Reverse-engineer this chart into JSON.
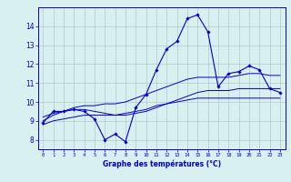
{
  "hours": [
    0,
    1,
    2,
    3,
    4,
    5,
    6,
    7,
    8,
    9,
    10,
    11,
    12,
    13,
    14,
    15,
    16,
    17,
    18,
    19,
    20,
    21,
    22,
    23
  ],
  "temp_main": [
    8.9,
    9.5,
    9.5,
    9.6,
    9.5,
    9.1,
    8.0,
    8.3,
    7.9,
    9.7,
    10.4,
    11.7,
    12.8,
    13.2,
    14.4,
    14.6,
    13.7,
    10.8,
    11.5,
    11.6,
    11.9,
    11.7,
    10.7,
    10.5
  ],
  "temp_avg": [
    9.0,
    9.3,
    9.5,
    9.6,
    9.6,
    9.5,
    9.4,
    9.3,
    9.3,
    9.4,
    9.5,
    9.7,
    9.9,
    10.1,
    10.3,
    10.5,
    10.6,
    10.6,
    10.6,
    10.7,
    10.7,
    10.7,
    10.7,
    10.7
  ],
  "temp_norm_max": [
    9.2,
    9.4,
    9.5,
    9.7,
    9.8,
    9.8,
    9.9,
    9.9,
    10.0,
    10.2,
    10.4,
    10.6,
    10.8,
    11.0,
    11.2,
    11.3,
    11.3,
    11.3,
    11.3,
    11.4,
    11.5,
    11.5,
    11.4,
    11.4
  ],
  "temp_norm_min": [
    8.8,
    9.0,
    9.1,
    9.2,
    9.3,
    9.3,
    9.3,
    9.3,
    9.4,
    9.5,
    9.6,
    9.8,
    9.9,
    10.0,
    10.1,
    10.2,
    10.2,
    10.2,
    10.2,
    10.2,
    10.2,
    10.2,
    10.2,
    10.2
  ],
  "line_color": "#0000cc",
  "bg_color": "#d8f0f0",
  "grid_color": "#b0c8c8",
  "xlabel": "Graphe des températures (°C)",
  "ylim": [
    7.5,
    15.0
  ],
  "xlim": [
    -0.5,
    23.5
  ]
}
